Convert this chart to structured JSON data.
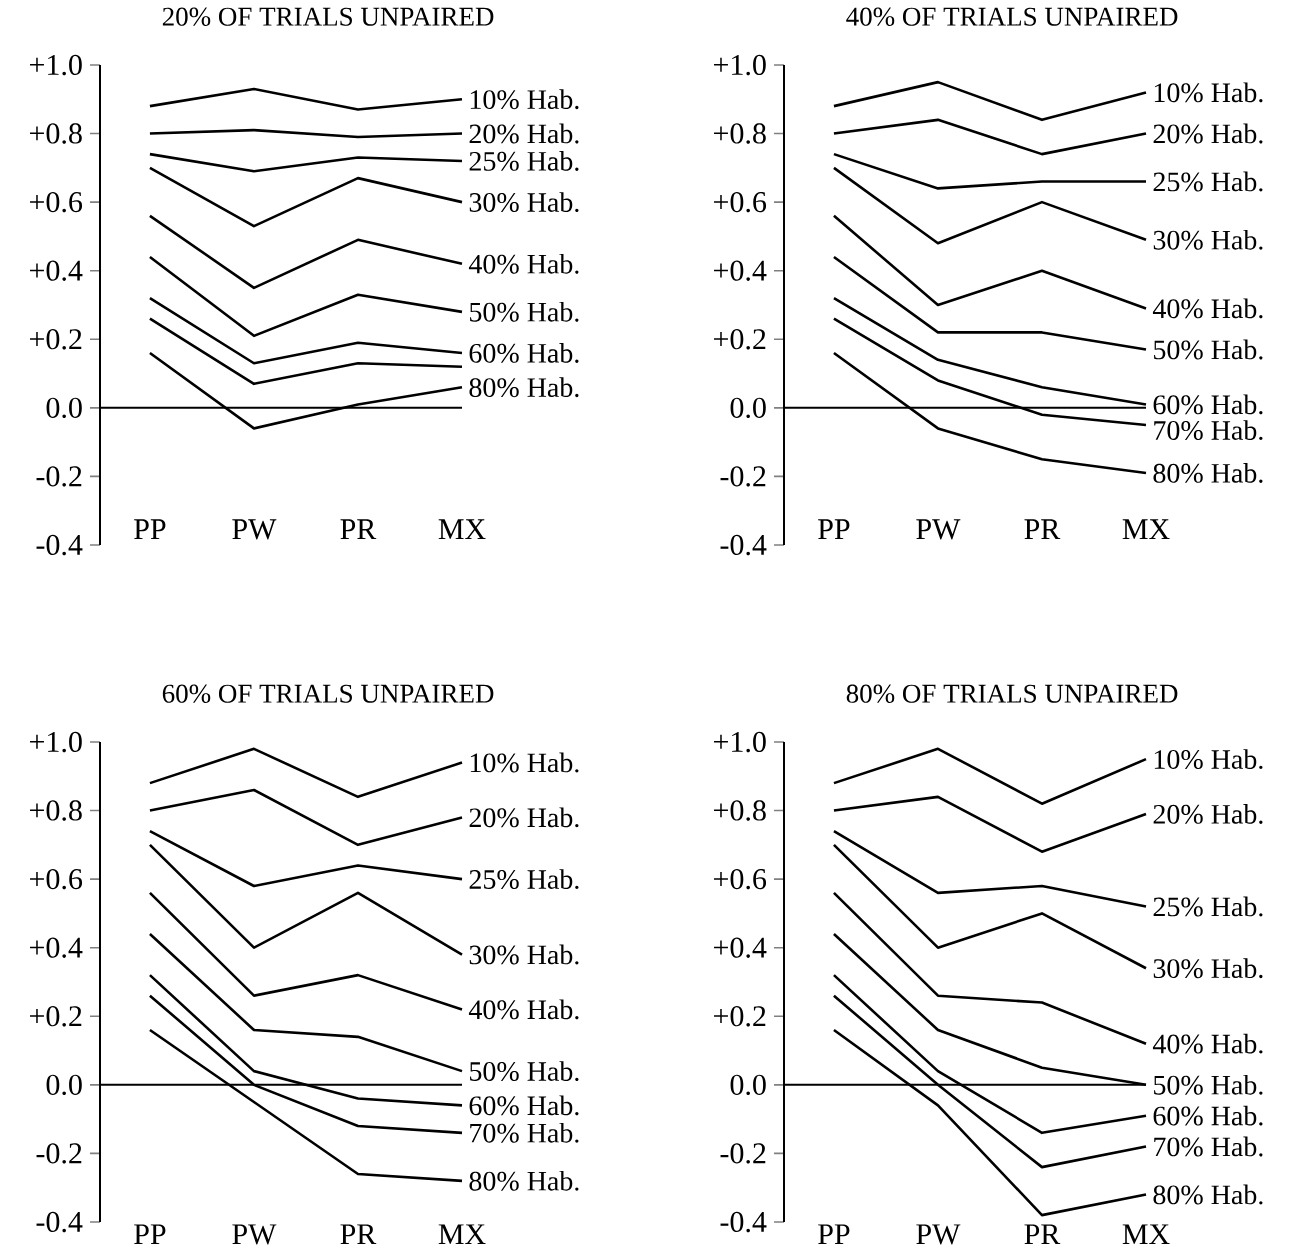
{
  "chart_data": [
    {
      "type": "line",
      "title": "20% OF TRIALS UNPAIRED",
      "categories": [
        "PP",
        "PW",
        "PR",
        "MX"
      ],
      "ylim": [
        -0.4,
        1.0
      ],
      "yticks": [
        {
          "value": -0.4,
          "label": "-0.4"
        },
        {
          "value": -0.2,
          "label": "-0.2"
        },
        {
          "value": 0,
          "label": "0.0"
        },
        {
          "value": 0.2,
          "label": "+0.2"
        },
        {
          "value": 0.4,
          "label": "+0.4"
        },
        {
          "value": 0.6,
          "label": "+0.6"
        },
        {
          "value": 0.8,
          "label": "+0.8"
        },
        {
          "value": 1.0,
          "label": "+1.0"
        }
      ],
      "ref_lines": [
        {
          "axis": "y",
          "value": 0
        }
      ],
      "series": [
        {
          "name": "10% Hab.",
          "color": "#000000",
          "values": [
            0.88,
            0.93,
            0.87,
            0.9
          ]
        },
        {
          "name": "20% Hab.",
          "color": "#000000",
          "values": [
            0.8,
            0.81,
            0.79,
            0.8
          ]
        },
        {
          "name": "25% Hab.",
          "color": "#000000",
          "values": [
            0.74,
            0.69,
            0.73,
            0.72
          ]
        },
        {
          "name": "30% Hab.",
          "color": "#000000",
          "values": [
            0.7,
            0.53,
            0.67,
            0.6
          ]
        },
        {
          "name": "40% Hab.",
          "color": "#000000",
          "values": [
            0.56,
            0.35,
            0.49,
            0.42
          ]
        },
        {
          "name": "50% Hab.",
          "color": "#000000",
          "values": [
            0.44,
            0.21,
            0.33,
            0.28
          ]
        },
        {
          "name": "60% Hab.",
          "color": "#000000",
          "values": [
            0.32,
            0.13,
            0.19,
            0.16
          ]
        },
        {
          "color": "#000000",
          "values": [
            0.26,
            0.07,
            0.13,
            0.12
          ]
        },
        {
          "name": "80% Hab.",
          "color": "#000000",
          "values": [
            0.16,
            -0.06,
            0.01,
            0.06
          ]
        }
      ]
    },
    {
      "type": "line",
      "title": "40% OF TRIALS UNPAIRED",
      "categories": [
        "PP",
        "PW",
        "PR",
        "MX"
      ],
      "ylim": [
        -0.4,
        1.0
      ],
      "yticks": [
        {
          "value": -0.4,
          "label": "-0.4"
        },
        {
          "value": -0.2,
          "label": "-0.2"
        },
        {
          "value": 0,
          "label": "0.0"
        },
        {
          "value": 0.2,
          "label": "+0.2"
        },
        {
          "value": 0.4,
          "label": "+0.4"
        },
        {
          "value": 0.6,
          "label": "+0.6"
        },
        {
          "value": 0.8,
          "label": "+0.8"
        },
        {
          "value": 1.0,
          "label": "+1.0"
        }
      ],
      "ref_lines": [
        {
          "axis": "y",
          "value": 0
        }
      ],
      "series": [
        {
          "name": "10% Hab.",
          "color": "#000000",
          "values": [
            0.88,
            0.95,
            0.84,
            0.92
          ]
        },
        {
          "name": "20% Hab.",
          "color": "#000000",
          "values": [
            0.8,
            0.84,
            0.74,
            0.8
          ]
        },
        {
          "name": "25% Hab.",
          "color": "#000000",
          "values": [
            0.74,
            0.64,
            0.66,
            0.66
          ]
        },
        {
          "name": "30% Hab.",
          "color": "#000000",
          "values": [
            0.7,
            0.48,
            0.6,
            0.49
          ]
        },
        {
          "name": "40% Hab.",
          "color": "#000000",
          "values": [
            0.56,
            0.3,
            0.4,
            0.29
          ]
        },
        {
          "name": "50% Hab.",
          "color": "#000000",
          "values": [
            0.44,
            0.22,
            0.22,
            0.17
          ]
        },
        {
          "name": "60% Hab.",
          "color": "#000000",
          "values": [
            0.32,
            0.14,
            0.06,
            0.01
          ]
        },
        {
          "name": "70% Hab.",
          "color": "#000000",
          "values": [
            0.26,
            0.08,
            -0.02,
            -0.05
          ]
        },
        {
          "name": "80% Hab.",
          "color": "#000000",
          "values": [
            0.16,
            -0.06,
            -0.15,
            -0.19
          ]
        }
      ]
    },
    {
      "type": "line",
      "title": "60% OF TRIALS UNPAIRED",
      "categories": [
        "PP",
        "PW",
        "PR",
        "MX"
      ],
      "ylim": [
        -0.4,
        1.0
      ],
      "yticks": [
        {
          "value": -0.4,
          "label": "-0.4"
        },
        {
          "value": -0.2,
          "label": "-0.2"
        },
        {
          "value": 0,
          "label": "0.0"
        },
        {
          "value": 0.2,
          "label": "+0.2"
        },
        {
          "value": 0.4,
          "label": "+0.4"
        },
        {
          "value": 0.6,
          "label": "+0.6"
        },
        {
          "value": 0.8,
          "label": "+0.8"
        },
        {
          "value": 1.0,
          "label": "+1.0"
        }
      ],
      "ref_lines": [
        {
          "axis": "y",
          "value": 0
        }
      ],
      "series": [
        {
          "name": "10% Hab.",
          "color": "#000000",
          "values": [
            0.88,
            0.98,
            0.84,
            0.94
          ]
        },
        {
          "name": "20% Hab.",
          "color": "#000000",
          "values": [
            0.8,
            0.86,
            0.7,
            0.78
          ]
        },
        {
          "name": "25% Hab.",
          "color": "#000000",
          "values": [
            0.74,
            0.58,
            0.64,
            0.6
          ]
        },
        {
          "name": "30% Hab.",
          "color": "#000000",
          "values": [
            0.7,
            0.4,
            0.56,
            0.38
          ]
        },
        {
          "name": "40% Hab.",
          "color": "#000000",
          "values": [
            0.56,
            0.26,
            0.32,
            0.22
          ]
        },
        {
          "name": "50% Hab.",
          "color": "#000000",
          "values": [
            0.44,
            0.16,
            0.14,
            0.04
          ]
        },
        {
          "name": "60% Hab.",
          "color": "#000000",
          "values": [
            0.32,
            0.04,
            -0.04,
            -0.06
          ]
        },
        {
          "name": "70% Hab.",
          "color": "#000000",
          "values": [
            0.26,
            0.0,
            -0.12,
            -0.14
          ]
        },
        {
          "name": "80% Hab.",
          "color": "#000000",
          "values": [
            0.16,
            -0.05,
            -0.26,
            -0.28
          ]
        }
      ]
    },
    {
      "type": "line",
      "title": "80% OF TRIALS UNPAIRED",
      "categories": [
        "PP",
        "PW",
        "PR",
        "MX"
      ],
      "ylim": [
        -0.4,
        1.0
      ],
      "yticks": [
        {
          "value": -0.4,
          "label": "-0.4"
        },
        {
          "value": -0.2,
          "label": "-0.2"
        },
        {
          "value": 0,
          "label": "0.0"
        },
        {
          "value": 0.2,
          "label": "+0.2"
        },
        {
          "value": 0.4,
          "label": "+0.4"
        },
        {
          "value": 0.6,
          "label": "+0.6"
        },
        {
          "value": 0.8,
          "label": "+0.8"
        },
        {
          "value": 1.0,
          "label": "+1.0"
        }
      ],
      "ref_lines": [
        {
          "axis": "y",
          "value": 0
        }
      ],
      "series": [
        {
          "name": "10% Hab.",
          "color": "#000000",
          "values": [
            0.88,
            0.98,
            0.82,
            0.95
          ]
        },
        {
          "name": "20% Hab.",
          "color": "#000000",
          "values": [
            0.8,
            0.84,
            0.68,
            0.79
          ]
        },
        {
          "name": "25% Hab.",
          "color": "#000000",
          "values": [
            0.74,
            0.56,
            0.58,
            0.52
          ]
        },
        {
          "name": "30% Hab.",
          "color": "#000000",
          "values": [
            0.7,
            0.4,
            0.5,
            0.34
          ]
        },
        {
          "name": "40% Hab.",
          "color": "#000000",
          "values": [
            0.56,
            0.26,
            0.24,
            0.12
          ]
        },
        {
          "name": "50% Hab.",
          "color": "#000000",
          "values": [
            0.44,
            0.16,
            0.05,
            0.0
          ]
        },
        {
          "name": "60% Hab.",
          "color": "#000000",
          "values": [
            0.32,
            0.04,
            -0.14,
            -0.09
          ]
        },
        {
          "name": "70% Hab.",
          "color": "#000000",
          "values": [
            0.26,
            0.0,
            -0.24,
            -0.18
          ]
        },
        {
          "name": "80% Hab.",
          "color": "#000000",
          "values": [
            0.16,
            -0.06,
            -0.38,
            -0.32
          ]
        }
      ]
    }
  ]
}
